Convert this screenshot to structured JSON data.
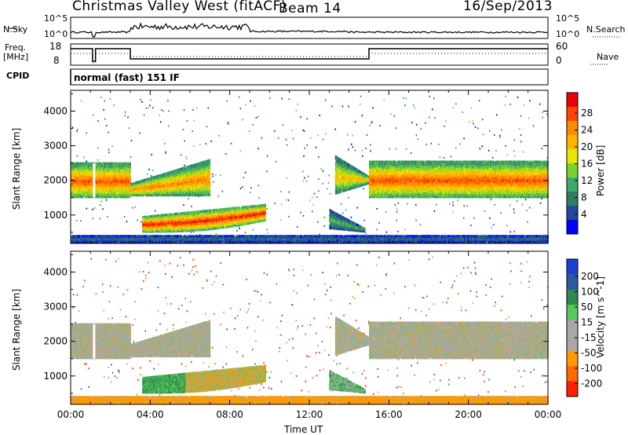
{
  "header": {
    "station": "Christmas Valley West (fitACF)",
    "beam": "Beam 14",
    "date": "16/Sep/2013"
  },
  "top_panels": {
    "nsky_label": "N.Sky",
    "nsky_ticks": [
      "10^5",
      "10^0"
    ],
    "nsearch_label": "N.Search",
    "nsearch_ticks": [
      "10^5",
      "10^0"
    ],
    "freq_label_line1": "Freq.",
    "freq_label_line2": "[MHz]",
    "freq_ticks": [
      "18",
      "8"
    ],
    "nave_label": "Nave",
    "nave_ticks": [
      "60",
      "0"
    ],
    "cpid_label": "CPID",
    "cpid_text": "normal (fast) 151 IF"
  },
  "power_colorbar": {
    "label": "Power [dB]",
    "ticks": [
      "28",
      "24",
      "20",
      "16",
      "12",
      "8",
      "4"
    ],
    "colors": [
      "#e8000b",
      "#ff4500",
      "#ff8c00",
      "#ffb400",
      "#e6e600",
      "#7cd132",
      "#3caa6e",
      "#2f7f5f",
      "#22499e",
      "#0000ff"
    ]
  },
  "velocity_colorbar": {
    "label": "Velocity [m s^-1]",
    "ticks": [
      "200",
      "100",
      "50",
      "15",
      "-15",
      "-50",
      "-100",
      "-200"
    ],
    "colors": [
      "#1f3fd0",
      "#2f5aa0",
      "#2e8a50",
      "#58c85a",
      "#a8a8a8",
      "#a8a8a8",
      "#ff9900",
      "#ff6a00",
      "#ff2000"
    ]
  },
  "x_axis": {
    "label": "Time UT",
    "ticks": [
      "00:00",
      "04:00",
      "08:00",
      "12:00",
      "16:00",
      "20:00",
      "00:00"
    ]
  },
  "chart_data": [
    {
      "type": "heatmap",
      "title": "Christmas Valley West (fitACF) Beam 14 16/Sep/2013",
      "panel": "power",
      "xlabel": "Time UT",
      "ylabel": "Slant Range [km]",
      "xlim": [
        0,
        24
      ],
      "ylim": [
        180,
        4600
      ],
      "y_ticks": [
        1000,
        2000,
        3000,
        4000
      ],
      "colorbar": {
        "label": "Power [dB]",
        "range": [
          0,
          30
        ]
      },
      "regions": [
        {
          "t0": 0.0,
          "t1": 3.0,
          "r0": 1500,
          "r1": 2500,
          "power": 22
        },
        {
          "t0": 3.0,
          "t1": 7.0,
          "r0": 1550,
          "r1": 2300,
          "power": 20
        },
        {
          "t0": 3.6,
          "t1": 9.8,
          "r0": 560,
          "r1": 1250,
          "power": 24
        },
        {
          "t0": 13.3,
          "t1": 15.0,
          "r0": 1600,
          "r1": 2300,
          "power": 17
        },
        {
          "t0": 13.0,
          "t1": 14.8,
          "r0": 500,
          "r1": 1100,
          "power": 10
        },
        {
          "t0": 15.0,
          "t1": 24.0,
          "r0": 1500,
          "r1": 2550,
          "power": 22
        },
        {
          "t0": 0.0,
          "t1": 24.0,
          "r0": 200,
          "r1": 400,
          "power": 6
        }
      ]
    },
    {
      "type": "heatmap",
      "title": "",
      "panel": "velocity",
      "xlabel": "Time UT",
      "ylabel": "Slant Range [km]",
      "xlim": [
        0,
        24
      ],
      "ylim": [
        180,
        4600
      ],
      "y_ticks": [
        1000,
        2000,
        3000,
        4000
      ],
      "colorbar": {
        "label": "Velocity [m s^-1]",
        "range": [
          -200,
          200
        ]
      },
      "regions": [
        {
          "t0": 0.0,
          "t1": 3.0,
          "r0": 1500,
          "r1": 2500,
          "velocity": 0
        },
        {
          "t0": 3.0,
          "t1": 7.0,
          "r0": 1550,
          "r1": 2300,
          "velocity": 0
        },
        {
          "t0": 3.6,
          "t1": 9.8,
          "r0": 560,
          "r1": 1250,
          "velocity": -40
        },
        {
          "t0": 13.3,
          "t1": 15.0,
          "r0": 1600,
          "r1": 2300,
          "velocity": 0
        },
        {
          "t0": 13.0,
          "t1": 14.8,
          "r0": 500,
          "r1": 1100,
          "velocity": 20
        },
        {
          "t0": 15.0,
          "t1": 24.0,
          "r0": 1500,
          "r1": 2550,
          "velocity": 0
        },
        {
          "t0": 0.0,
          "t1": 24.0,
          "r0": 200,
          "r1": 400,
          "velocity": -30
        }
      ]
    }
  ]
}
